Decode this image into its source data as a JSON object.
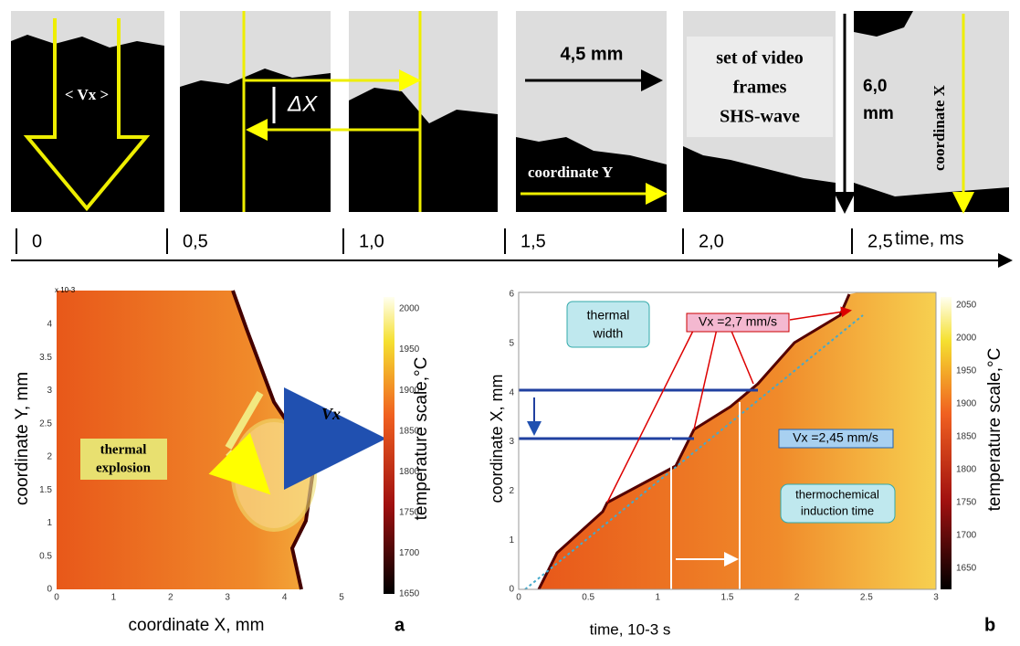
{
  "top_strip": {
    "time_ticks": [
      "0",
      "0,5",
      "1,0",
      "1,5",
      "2,0",
      "2,5"
    ],
    "time_label": "time, ms",
    "annotations": {
      "velocity": "< Vx >",
      "delta": "ΔX",
      "width": "4,5 mm",
      "coord_y": "coordinate Y",
      "frames": [
        "set of video",
        "frames",
        "SHS-wave"
      ],
      "height": [
        "6,0",
        "mm"
      ],
      "coord_x": "coordinate X"
    }
  },
  "panel_a": {
    "letter": "a",
    "x_label": "coordinate X, mm",
    "y_label": "coordinate Y, mm",
    "y_exponent": "x 10-3",
    "colorbar_label": "temperature scale,°C",
    "xticks": [
      0,
      1,
      2,
      3,
      4,
      5
    ],
    "yticks": [
      0,
      0.5,
      1,
      1.5,
      2,
      2.5,
      3,
      3.5,
      4
    ],
    "cticks": [
      1650,
      1700,
      1750,
      1800,
      1850,
      1900,
      1950,
      2000
    ],
    "annotations": {
      "explosion": [
        "thermal",
        "explosion"
      ],
      "velocity": "Vx"
    }
  },
  "panel_b": {
    "letter": "b",
    "x_label": "time, 10-3 s",
    "y_label": "coordinate X, mm",
    "colorbar_label": "temperature scale,°C",
    "xticks": [
      0,
      0.5,
      1,
      1.5,
      2,
      2.5,
      3
    ],
    "yticks": [
      0,
      1,
      2,
      3,
      4,
      5,
      6
    ],
    "cticks": [
      1650,
      1700,
      1750,
      1800,
      1850,
      1900,
      1950,
      2000,
      2050
    ],
    "annotations": {
      "thermal_width": [
        "thermal",
        "width"
      ],
      "v1": "Vx =2,7 mm/s",
      "v2": "Vx =2,45 mm/s",
      "induction": [
        "thermochemical",
        "induction time"
      ]
    }
  }
}
